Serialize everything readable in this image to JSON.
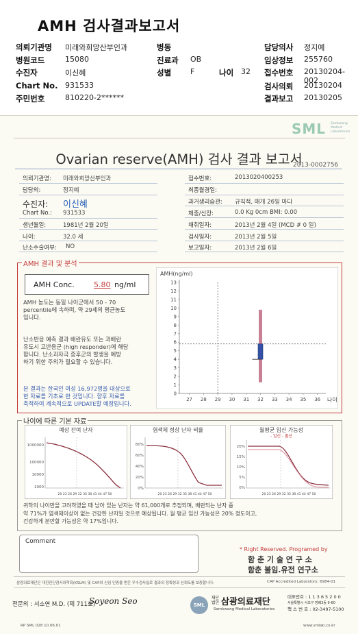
{
  "header": {
    "title": "AMH 검사결과보고서",
    "rows": [
      {
        "k1": "의뢰기관명",
        "v1": "미래와희망산부인과",
        "k2": "병동",
        "v2": "",
        "k3": "",
        "v3": "",
        "k4": "담당의사",
        "v4": "정지예"
      },
      {
        "k1": "병원코드",
        "v1": "15080",
        "k2": "진료과",
        "v2": "OB",
        "k3": "",
        "v3": "",
        "k4": "임상정보",
        "v4": "255760"
      },
      {
        "k1": "수진자",
        "v1": "이신혜",
        "k2": "성별",
        "v2": "F",
        "k3": "나이",
        "v3": "32",
        "k4": "접수번호",
        "v4": "20130204-002"
      },
      {
        "k1": "Chart No.",
        "v1": "931533",
        "k2": "",
        "v2": "",
        "k3": "",
        "v3": "",
        "k4": "검사의뢰",
        "v4": "20130204"
      },
      {
        "k1": "주민번호",
        "v1": "810220-2******",
        "k2": "",
        "v2": "",
        "k3": "",
        "v3": "",
        "k4": "결과보고",
        "v4": "20130205"
      }
    ]
  },
  "report": {
    "logo": "SML",
    "logo_sub": [
      "Samkwang",
      "Medical",
      "Laboratories"
    ],
    "title": "Ovarian reserve(AMH) 검사 결과 보고서",
    "report_id": "2013-0002756",
    "left_fields": [
      {
        "label": "의뢰기관명:",
        "value": "미래와희망산부인과"
      },
      {
        "label": "담당의:",
        "value": "정지예"
      },
      {
        "label": "수진자:",
        "value": "이신혜"
      },
      {
        "label": "Chart No.:",
        "value": "931533"
      },
      {
        "label": "생년월일:",
        "value": "1981년 2월 20일"
      },
      {
        "label": "나이:",
        "value": "32.0 세"
      },
      {
        "label": "난소수술여부:",
        "value": "NO"
      }
    ],
    "right_fields": [
      {
        "label": "접수번호:",
        "value": "2013020400253"
      },
      {
        "label": "최종월경일:",
        "value": ""
      },
      {
        "label": "과거생리습관:",
        "value": "규칙적,  매개   26일 마다"
      },
      {
        "label": "체중/신장:",
        "value": "0.0 Kg      0cm    BMI:  0.00"
      },
      {
        "label": "채취일자:",
        "value": "2013년 2월 4일    (MCD #  0 일)"
      },
      {
        "label": "검사일자:",
        "value": "2013년 2월 5일"
      },
      {
        "label": "보고일자:",
        "value": "2013년 2월 6일"
      }
    ]
  },
  "amh_section": {
    "title": "AMH 결과 및 분석",
    "conc_label": "AMH Conc.",
    "conc_value": "5.80",
    "conc_unit": "ng/ml",
    "para1": [
      "AMH 농도는 동일 나이군에서   50 - 70",
      "percentile에 속하며, 약  29세의 평균농도",
      "입니다."
    ],
    "para2": [
      "난소반응 예측 결과 배란유도 또는 과배란",
      "유도시 고반응군 (high responder)에 해당",
      "합니다. 난소과자극 증후군의 발생을 예방",
      "하기 위한 주의가 필요할 수 있습니다."
    ],
    "para3": [
      "본 결과는 한국인 여성 16,972명을 대상으로",
      "한 자료를 기초로 한 것입니다. 향후 자료를",
      "축적하여 계속적으로 UPDATE할 예정입니다."
    ]
  },
  "chart_data": {
    "type": "box",
    "title": "",
    "ylabel": "AMH(ng/ml)",
    "xlabel": "나이",
    "x_ticks": [
      27,
      28,
      29,
      30,
      31,
      32,
      33,
      34,
      35,
      36
    ],
    "y_ticks": [
      0,
      1,
      2,
      3,
      4,
      5,
      6,
      7,
      8,
      9,
      10,
      11,
      12,
      13
    ],
    "ylim": [
      0,
      13
    ],
    "xlim": [
      26.3,
      36.4
    ],
    "box": {
      "x": 32,
      "whisker_low": 1.3,
      "whisker_high": 9.8,
      "q1": 4.0,
      "q3": 5.8
    },
    "patient_age": 32,
    "patient_value": 5.8,
    "ref_age": 29,
    "ref_value": 5.8
  },
  "age_section": {
    "title": "나이에 따른 기본 자료",
    "charts": [
      {
        "title": "예상 잔여 난자",
        "y_ticks": [
          "1000",
          "10000",
          "100000",
          "1000000"
        ]
      },
      {
        "title": "염색체 정상 난자 비율",
        "y_ticks": [
          "0%",
          "20%",
          "40%",
          "60%",
          "80%"
        ]
      },
      {
        "title": "월평균 임신 가능성",
        "legend": "- 임신 - 출산",
        "y_ticks": [
          "0%",
          "5%",
          "10%",
          "15%",
          "20%"
        ]
      }
    ],
    "x_ticks": "20 23 26 29 32 35 38 41 44 47 50",
    "desc": [
      "귀하의 나이만을 고려하였을 때 남아 있는 난자는 약  61,000개로 추정되며, 배란되는 난자 중",
      "약  71%가 염색체이상이 없는 건강한 난자일 것으로 예상됩니다. 월 평균 임신 가능성은  20% 정도이고,",
      "건강하게 분만할 가능성은 약  17%입니다."
    ]
  },
  "comment": {
    "label": "Comment"
  },
  "rights": {
    "line1": "* Right Reserved. Programed by",
    "line2": "함 춘 기 술 연 구 소",
    "line3": "함춘 불임.유전 연구소"
  },
  "footer": {
    "note": "삼광의료재단은 대한진단검사의학회(KSLM) 및 CAP의 신임 인증을 받은 우수검사실로 결과의 정확성과 신뢰도를 보증합니다.",
    "cap": "CAP  Accredited  Laboratory,  6984-01",
    "doctor": "전문의 : 서소연 M.D. (제 711호)",
    "signature": "Soyeon Seo",
    "foundation_prefix": "재단법인",
    "foundation": "삼광의료재단",
    "foundation_en": "Samkwang Medical Laboratories",
    "contact": [
      "대표번호 : 1 1 3 6 5 2 0 0",
      "서울특별시 서초구 방배3동 9-60",
      "팩 스 번 호 : 02-3497-5100"
    ],
    "code": "RP  SML  028  10.06.01",
    "url": "www.smlab.co.kr"
  }
}
